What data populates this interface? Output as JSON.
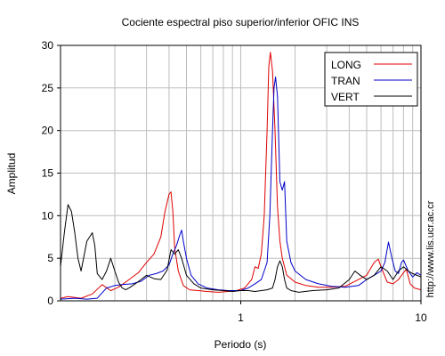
{
  "chart_data": {
    "type": "line",
    "title": "Cociente espectral piso superior/inferior  OFIC INS",
    "xlabel": "Periodo (s)",
    "ylabel": "Amplitud",
    "xscale": "log",
    "xlim": [
      0.1,
      10
    ],
    "ylim": [
      0,
      30
    ],
    "yticks": [
      0,
      5,
      10,
      15,
      20,
      25,
      30
    ],
    "xticks": [
      1,
      10
    ],
    "grid": true,
    "legend_position": "top-right",
    "watermark": "http://www.lis.ucr.ac.cr",
    "series": [
      {
        "name": "LONG",
        "color": "#e00000",
        "x": [
          0.1,
          0.11,
          0.12,
          0.13,
          0.15,
          0.17,
          0.19,
          0.21,
          0.24,
          0.27,
          0.3,
          0.33,
          0.36,
          0.38,
          0.4,
          0.41,
          0.42,
          0.43,
          0.45,
          0.48,
          0.52,
          0.58,
          0.65,
          0.75,
          0.85,
          0.95,
          1.05,
          1.15,
          1.2,
          1.25,
          1.3,
          1.35,
          1.4,
          1.43,
          1.46,
          1.5,
          1.55,
          1.6,
          1.65,
          1.7,
          1.8,
          2.0,
          2.3,
          2.7,
          3.2,
          3.8,
          4.5,
          5.0,
          5.5,
          5.8,
          6.0,
          6.5,
          7.0,
          7.5,
          8.0,
          8.3,
          8.7,
          9.2,
          10.0
        ],
        "y": [
          0.3,
          0.5,
          0.4,
          0.3,
          0.8,
          1.9,
          1.2,
          1.6,
          2.5,
          3.3,
          4.5,
          5.5,
          7.5,
          10.5,
          12.5,
          12.8,
          10.5,
          6.2,
          3.5,
          1.8,
          1.3,
          1.2,
          1.1,
          1.0,
          1.1,
          1.2,
          1.5,
          2.5,
          4.0,
          3.8,
          5.5,
          10.0,
          20.0,
          27.5,
          29.2,
          27.0,
          20.0,
          11.0,
          7.0,
          5.0,
          3.0,
          2.2,
          1.8,
          1.6,
          1.6,
          1.7,
          2.5,
          3.0,
          4.5,
          4.9,
          4.0,
          2.2,
          2.0,
          2.5,
          3.3,
          3.7,
          2.0,
          1.5,
          1.3
        ]
      },
      {
        "name": "TRAN",
        "color": "#0000c8",
        "x": [
          0.1,
          0.12,
          0.14,
          0.16,
          0.18,
          0.2,
          0.22,
          0.25,
          0.28,
          0.31,
          0.34,
          0.37,
          0.4,
          0.42,
          0.44,
          0.46,
          0.47,
          0.48,
          0.5,
          0.53,
          0.58,
          0.65,
          0.75,
          0.85,
          1.0,
          1.1,
          1.2,
          1.3,
          1.4,
          1.45,
          1.5,
          1.53,
          1.56,
          1.6,
          1.65,
          1.7,
          1.75,
          1.8,
          1.9,
          2.0,
          2.3,
          2.7,
          3.2,
          3.8,
          4.5,
          5.0,
          5.5,
          6.0,
          6.3,
          6.6,
          6.9,
          7.2,
          7.5,
          7.8,
          8.0,
          8.5,
          9.0,
          9.5,
          10.0
        ],
        "y": [
          0.2,
          0.3,
          0.2,
          0.3,
          1.5,
          1.8,
          1.9,
          2.0,
          2.3,
          3.0,
          3.2,
          3.5,
          4.2,
          5.5,
          6.5,
          7.8,
          8.3,
          7.0,
          5.0,
          3.0,
          2.0,
          1.5,
          1.3,
          1.2,
          1.2,
          1.5,
          2.0,
          2.5,
          4.5,
          10.0,
          20.0,
          25.0,
          26.3,
          24.0,
          14.0,
          13.0,
          14.0,
          7.0,
          4.5,
          3.5,
          2.5,
          2.0,
          1.7,
          1.6,
          1.8,
          2.5,
          3.0,
          3.5,
          4.5,
          6.9,
          5.0,
          3.5,
          3.2,
          4.5,
          4.8,
          3.5,
          2.8,
          3.3,
          3.0
        ]
      },
      {
        "name": "VERT",
        "color": "#000000",
        "x": [
          0.1,
          0.105,
          0.11,
          0.115,
          0.12,
          0.125,
          0.13,
          0.14,
          0.15,
          0.155,
          0.16,
          0.17,
          0.18,
          0.19,
          0.2,
          0.21,
          0.22,
          0.23,
          0.24,
          0.26,
          0.28,
          0.3,
          0.33,
          0.36,
          0.39,
          0.41,
          0.43,
          0.45,
          0.47,
          0.5,
          0.55,
          0.6,
          0.7,
          0.8,
          0.9,
          1.0,
          1.1,
          1.2,
          1.3,
          1.4,
          1.5,
          1.55,
          1.6,
          1.65,
          1.7,
          1.75,
          1.8,
          1.9,
          2.1,
          2.5,
          3.0,
          3.5,
          4.0,
          4.3,
          4.6,
          5.0,
          5.5,
          6.0,
          6.5,
          7.0,
          7.5,
          8.0,
          8.5,
          9.0,
          10.0
        ],
        "y": [
          4.0,
          8.0,
          11.3,
          10.5,
          8.0,
          5.0,
          3.5,
          7.0,
          8.0,
          6.5,
          3.2,
          2.5,
          3.5,
          5.0,
          3.5,
          2.2,
          1.5,
          1.3,
          1.5,
          2.0,
          2.5,
          3.0,
          2.6,
          2.5,
          3.6,
          6.0,
          5.5,
          6.0,
          5.0,
          3.0,
          2.0,
          1.5,
          1.3,
          1.2,
          1.1,
          1.2,
          1.2,
          1.1,
          1.2,
          1.3,
          1.5,
          2.5,
          4.0,
          4.7,
          4.0,
          2.5,
          1.5,
          1.2,
          1.0,
          1.2,
          1.3,
          1.5,
          2.5,
          3.5,
          3.0,
          2.5,
          3.0,
          4.0,
          3.5,
          2.5,
          3.5,
          4.0,
          3.5,
          3.2,
          2.8
        ]
      }
    ]
  }
}
